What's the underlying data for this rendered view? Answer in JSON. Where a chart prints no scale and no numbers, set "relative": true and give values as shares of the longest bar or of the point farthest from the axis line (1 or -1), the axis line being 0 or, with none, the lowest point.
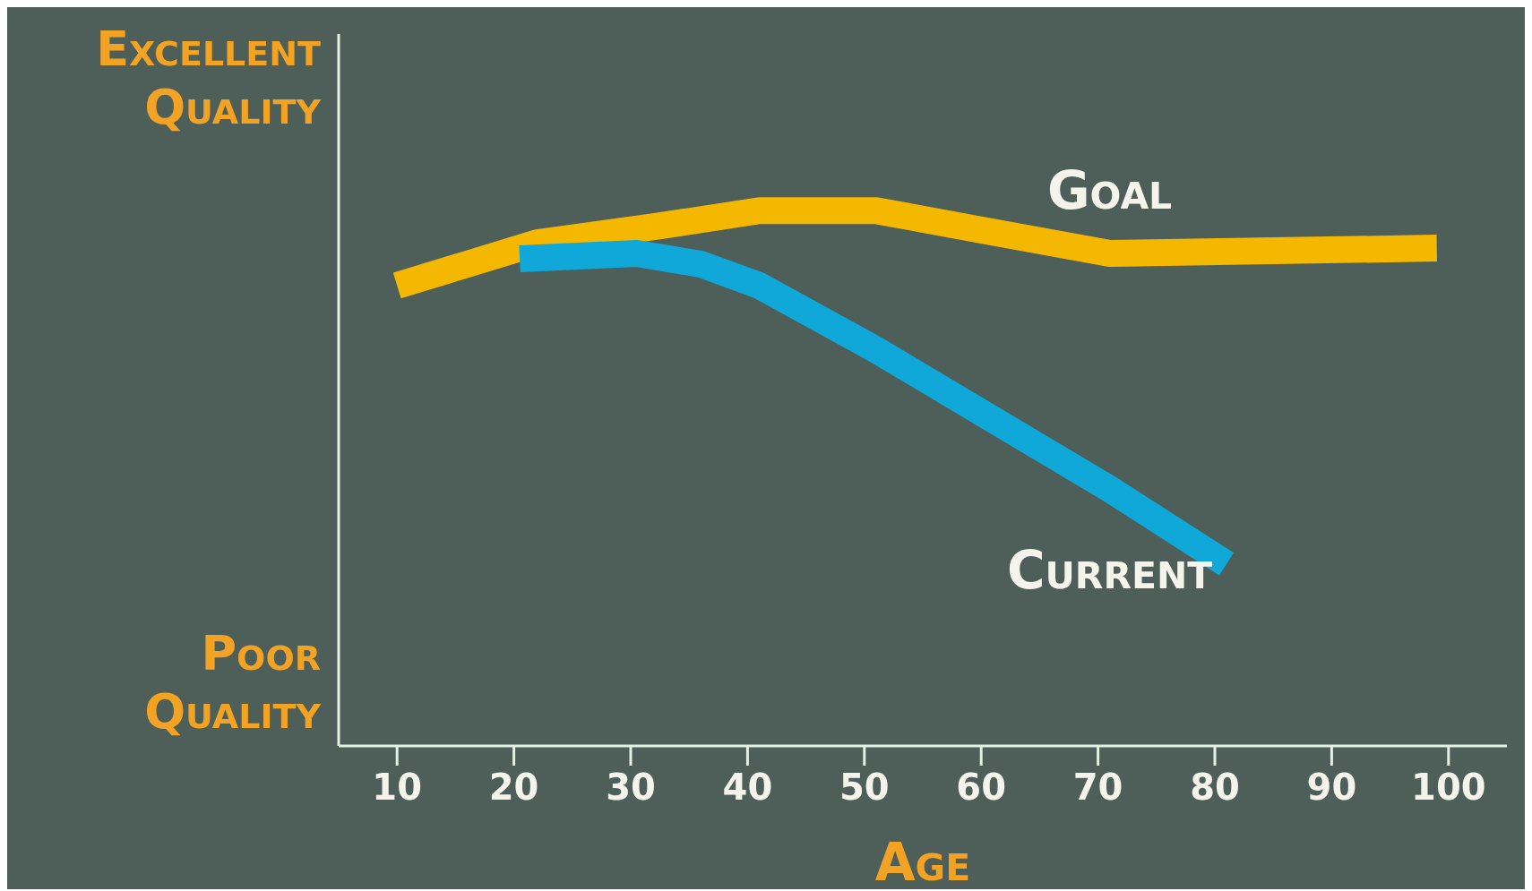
{
  "chart_data": {
    "type": "line",
    "relative": true,
    "xlabel": "Age",
    "xlim": [
      5,
      105
    ],
    "xticks": [
      10,
      20,
      30,
      40,
      50,
      60,
      70,
      80,
      90,
      100
    ],
    "marker": "none",
    "line_style": "solid",
    "annotations": [
      "Excellent Quality",
      "Poor Quality"
    ],
    "series": [
      {
        "name": "Goal",
        "color": "#f5b800",
        "x": [
          10,
          22,
          32,
          41,
          51,
          61,
          71,
          99
        ],
        "values": [
          0.86,
          0.94,
          0.97,
          1,
          1,
          0.96,
          0.92,
          0.93
        ]
      },
      {
        "name": "Current",
        "color": "#10a8d8",
        "x": [
          20.5,
          30.5,
          36,
          41,
          51,
          61,
          71,
          81
        ],
        "values": [
          0.91,
          0.92,
          0.9,
          0.86,
          0.74,
          0.61,
          0.48,
          0.34
        ]
      }
    ]
  }
}
